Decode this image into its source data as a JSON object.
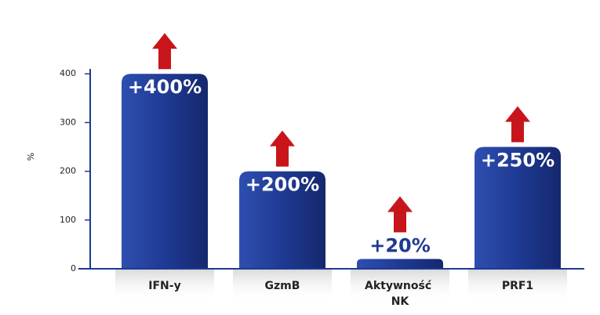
{
  "chart_data": {
    "type": "bar",
    "y_label": "%",
    "categories": [
      "IFN-y",
      "GzmB",
      "Aktywność NK",
      "PRF1"
    ],
    "values": [
      400,
      200,
      20,
      250
    ],
    "value_labels": [
      "+400%",
      "+200%",
      "+20%",
      "+250%"
    ],
    "color": "#1f3a93",
    "ylim": [
      0,
      410
    ],
    "yticks": [
      0,
      100,
      200,
      300,
      400
    ]
  }
}
